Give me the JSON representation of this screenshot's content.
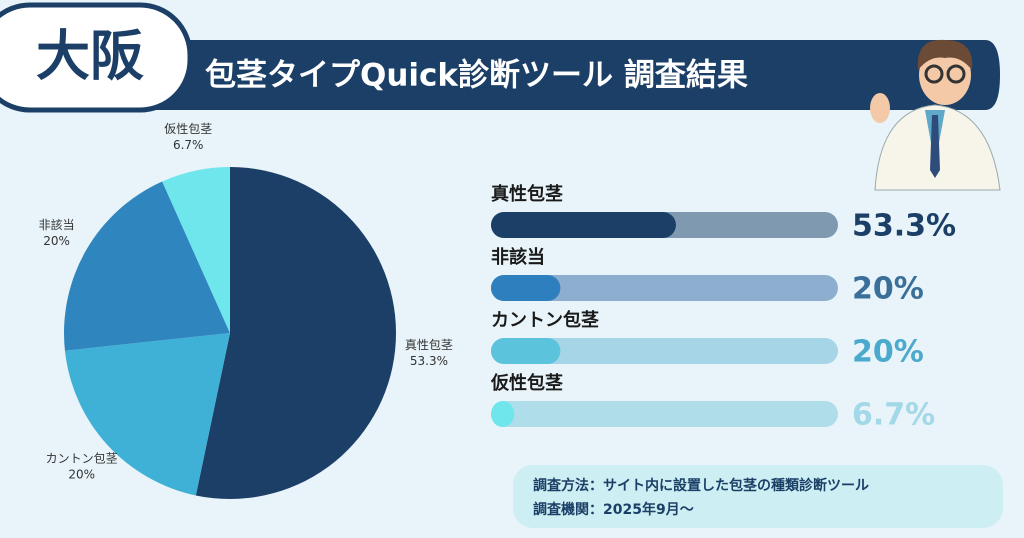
{
  "header": {
    "region": "大阪",
    "title": "包茎タイプQuick診断ツール 調査結果"
  },
  "chart_data": [
    {
      "type": "pie",
      "categories": [
        "真性包茎",
        "カントン包茎",
        "非該当",
        "仮性包茎"
      ],
      "values": [
        53.3,
        20,
        20,
        6.7
      ],
      "value_labels": [
        "53.3%",
        "20%",
        "20%",
        "6.7%"
      ],
      "colors": [
        "#1b3f66",
        "#40b1d6",
        "#2f86bf",
        "#6ee6ec"
      ]
    },
    {
      "type": "bar",
      "categories": [
        "真性包茎",
        "非該当",
        "カントン包茎",
        "仮性包茎"
      ],
      "values": [
        53.3,
        20,
        20,
        6.7
      ],
      "value_labels": [
        "53.3%",
        "20%",
        "20%",
        "6.7%"
      ],
      "xlim": [
        0,
        100
      ],
      "colors": [
        "#1b3f66",
        "#2e7fbd",
        "#5cc3dc",
        "#6ee6ec"
      ],
      "track_colors": [
        "#7f9ab0",
        "#8eaed0",
        "#a5d5e6",
        "#afdde9"
      ],
      "label_colors": [
        "#1b3f66",
        "#3a6f9a",
        "#4aa9cc",
        "#a3d8e8"
      ]
    }
  ],
  "footnote": {
    "method": "調査方法：サイト内に設置した包茎の種類診断ツール",
    "period": "調査機関：2025年9月〜"
  }
}
